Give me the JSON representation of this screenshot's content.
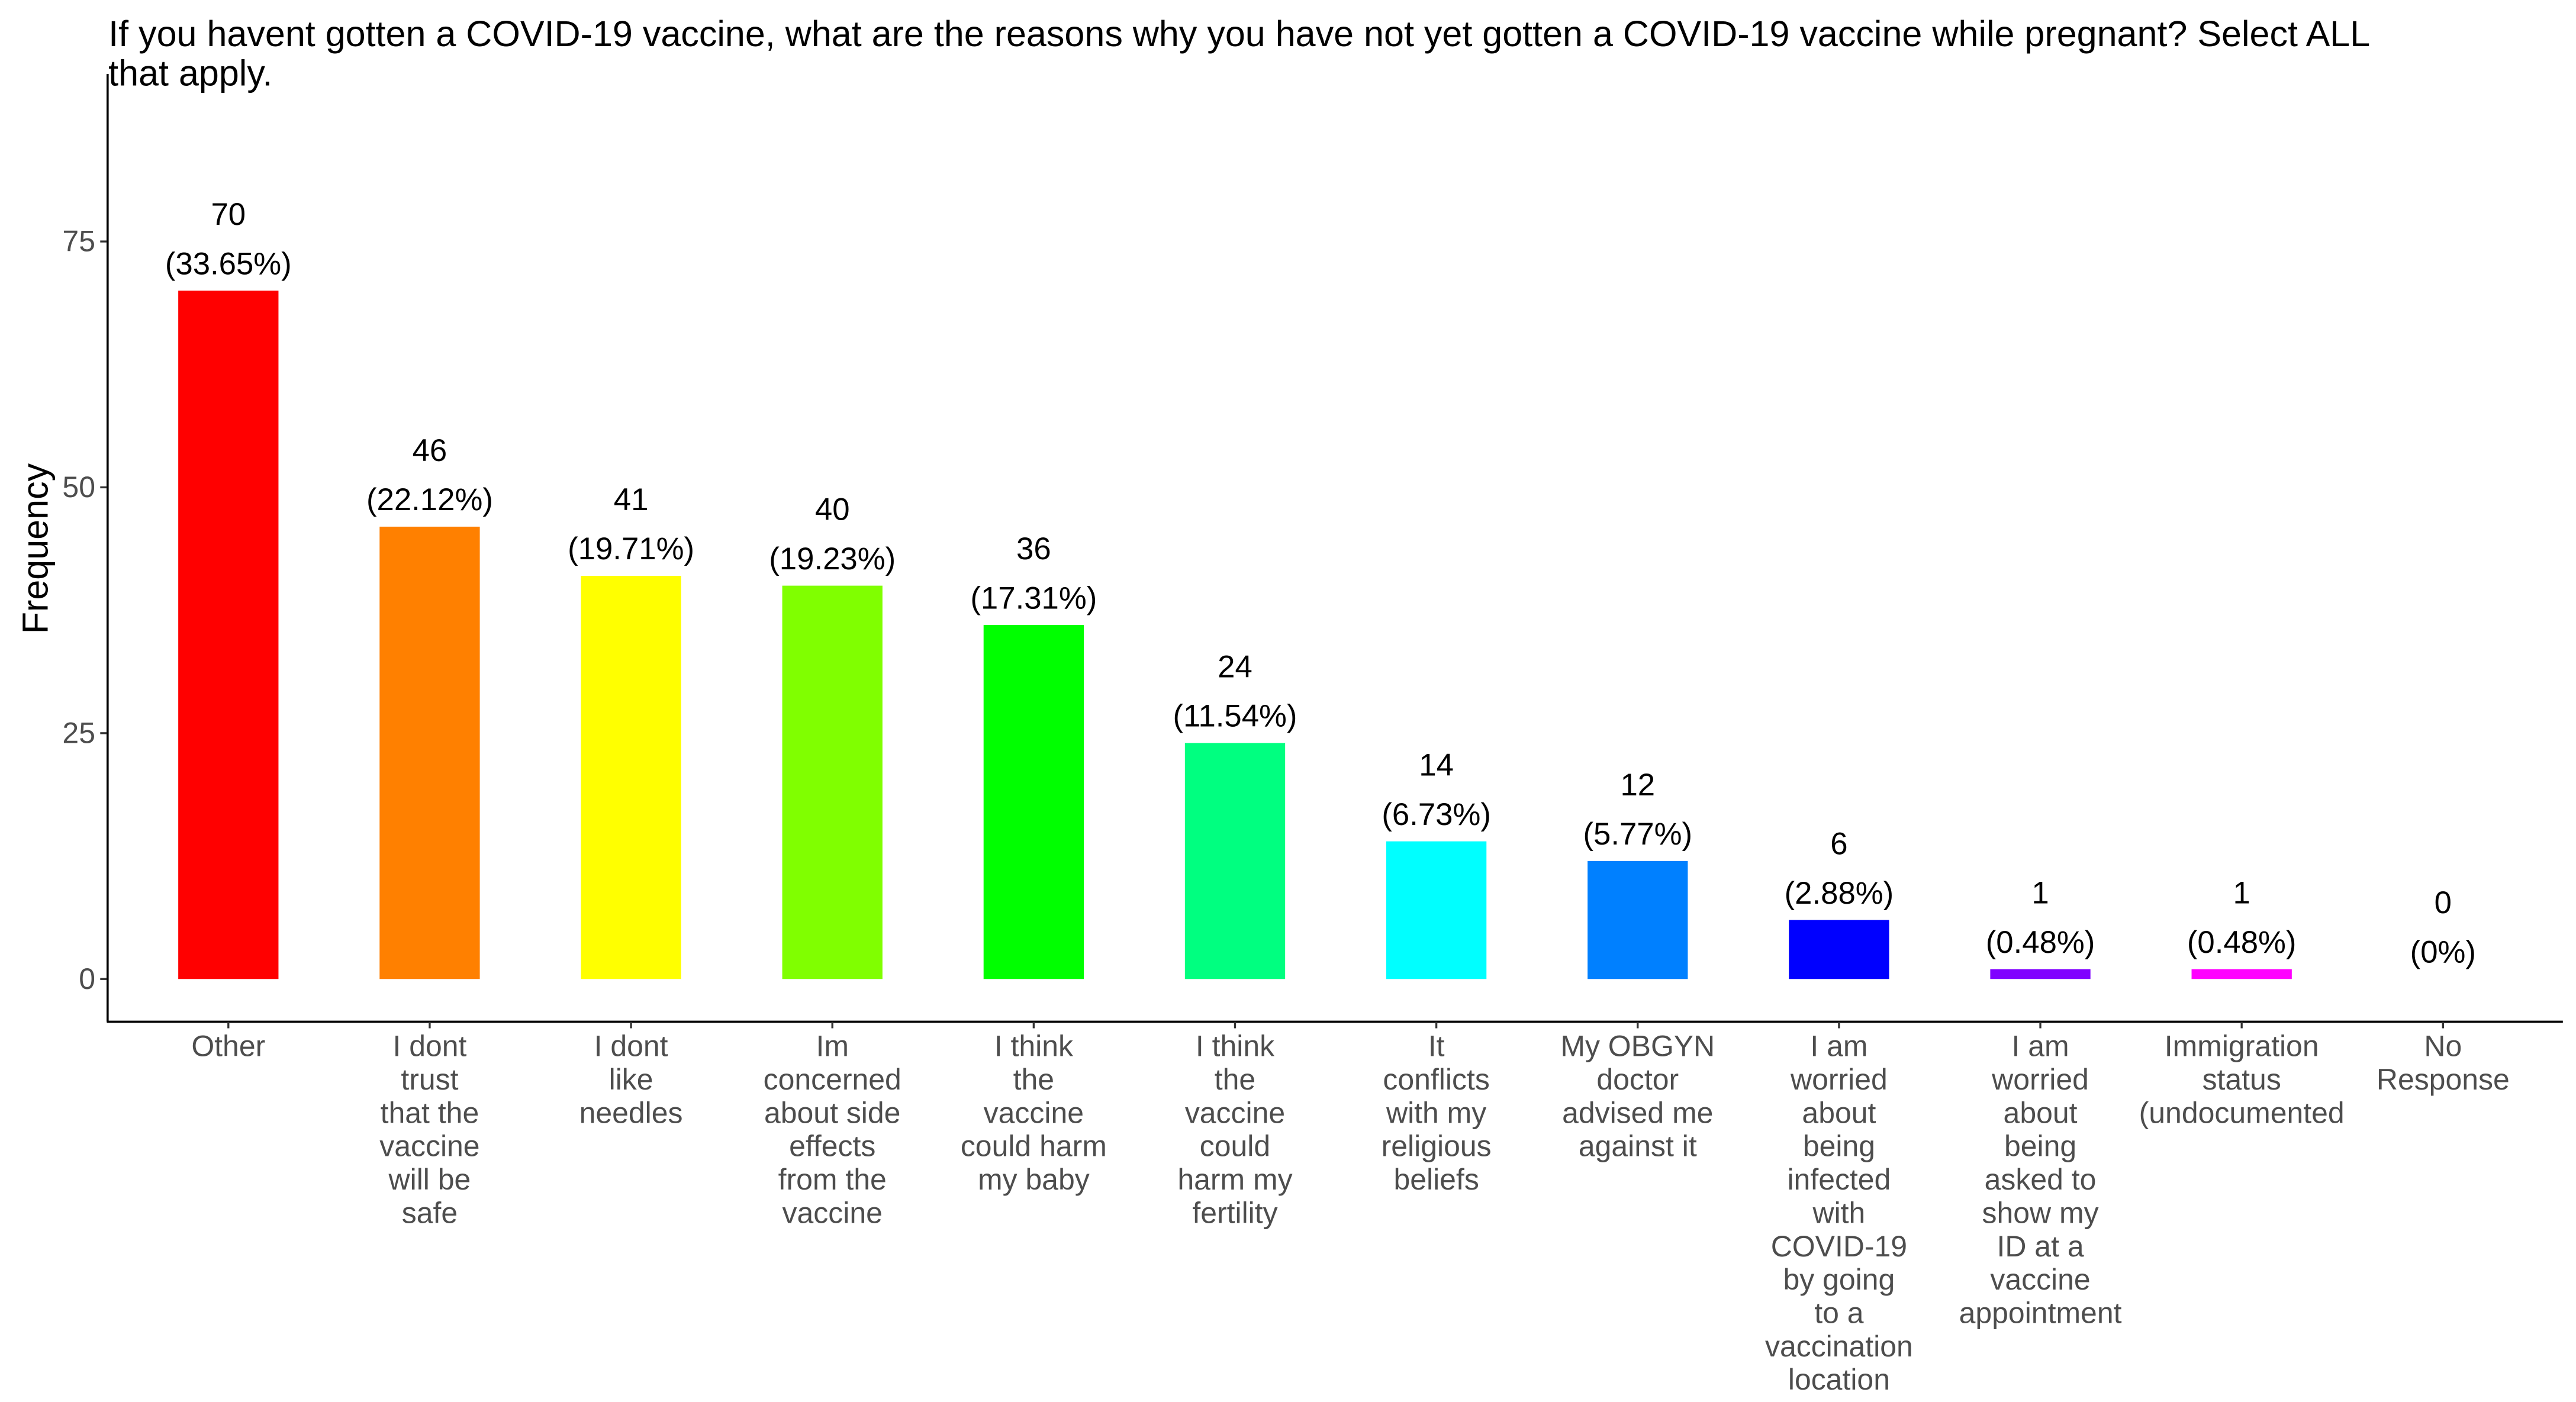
{
  "chart_data": {
    "type": "bar",
    "title_lines": [
      "If you havent gotten a COVID-19 vaccine, what are the reasons why you have not yet gotten a COVID-19 vaccine while pregnant? Select ALL",
      "that apply."
    ],
    "xlabel": "",
    "ylabel": "Frequency",
    "ylim": [
      0,
      92
    ],
    "yticks": [
      0,
      25,
      50,
      75
    ],
    "grid": false,
    "legend": "none",
    "categories": [
      [
        "Other"
      ],
      [
        "I dont",
        "trust",
        "that the",
        "vaccine",
        "will be",
        "safe"
      ],
      [
        "I dont",
        "like",
        "needles"
      ],
      [
        "Im",
        "concerned",
        "about side",
        "effects",
        "from the",
        "vaccine"
      ],
      [
        "I think",
        "the",
        "vaccine",
        "could harm",
        "my baby"
      ],
      [
        "I think",
        "the",
        "vaccine",
        "could",
        "harm my",
        "fertility"
      ],
      [
        "It",
        "conflicts",
        "with my",
        "religious",
        "beliefs"
      ],
      [
        "My OBGYN",
        "doctor",
        "advised me",
        "against it"
      ],
      [
        "I am",
        "worried",
        "about",
        "being",
        "infected",
        "with",
        "COVID-19",
        "by going",
        "to a",
        "vaccination",
        "location"
      ],
      [
        "I am",
        "worried",
        "about",
        "being",
        "asked to",
        "show my",
        "ID at a",
        "vaccine",
        "appointment"
      ],
      [
        "Immigration",
        "status",
        "(undocumented"
      ],
      [
        "No",
        "Response"
      ]
    ],
    "values": [
      70,
      46,
      41,
      40,
      36,
      24,
      14,
      12,
      6,
      1,
      1,
      0
    ],
    "percent_labels": [
      "(33.65%)",
      "(22.12%)",
      "(19.71%)",
      "(19.23%)",
      "(17.31%)",
      "(11.54%)",
      "(6.73%)",
      "(5.77%)",
      "(2.88%)",
      "(0.48%)",
      "(0.48%)",
      "(0%)"
    ],
    "colors": [
      "#FF0000",
      "#FF8000",
      "#FFFF00",
      "#80FF00",
      "#00FF00",
      "#00FF80",
      "#00FFFF",
      "#0080FF",
      "#0000FF",
      "#8000FF",
      "#FF00FF",
      "#FF0080"
    ]
  }
}
